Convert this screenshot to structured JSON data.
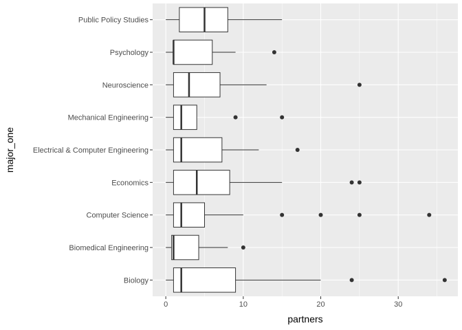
{
  "chart_data": {
    "type": "boxplot",
    "orientation": "horizontal",
    "xlabel": "partners",
    "ylabel": "major_one",
    "xlim": [
      -1.7,
      37.7
    ],
    "x_ticks": [
      0,
      10,
      20,
      30
    ],
    "x_tick_labels": [
      "0",
      "10",
      "20",
      "30"
    ],
    "grid": true,
    "colors": {
      "panel_background": "#ebebeb",
      "grid_major": "#ffffff",
      "box_fill": "#ffffff",
      "box_line": "#333333",
      "point": "#333333"
    },
    "categories": [
      "Biology",
      "Biomedical Engineering",
      "Computer Science",
      "Economics",
      "Electrical & Computer Engineering",
      "Mechanical Engineering",
      "Neuroscience",
      "Psychology",
      "Public Policy Studies"
    ],
    "boxes": [
      {
        "category": "Biology",
        "whisker_low": 0,
        "q1": 1,
        "median": 2,
        "q3": 9,
        "whisker_high": 20,
        "outliers": [
          24,
          36
        ]
      },
      {
        "category": "Biomedical Engineering",
        "whisker_low": 0,
        "q1": 0.75,
        "median": 1,
        "q3": 4.25,
        "whisker_high": 8,
        "outliers": [
          10
        ]
      },
      {
        "category": "Computer Science",
        "whisker_low": 0,
        "q1": 1,
        "median": 2,
        "q3": 5,
        "whisker_high": 10,
        "outliers": [
          15,
          20,
          25,
          34
        ]
      },
      {
        "category": "Economics",
        "whisker_low": 0,
        "q1": 1,
        "median": 4,
        "q3": 8.25,
        "whisker_high": 15,
        "outliers": [
          24,
          25
        ]
      },
      {
        "category": "Electrical & Computer Engineering",
        "whisker_low": 0,
        "q1": 1,
        "median": 2,
        "q3": 7.25,
        "whisker_high": 12,
        "outliers": [
          17
        ]
      },
      {
        "category": "Mechanical Engineering",
        "whisker_low": 0,
        "q1": 1,
        "median": 2,
        "q3": 4,
        "whisker_high": 4,
        "outliers": [
          9,
          15
        ]
      },
      {
        "category": "Neuroscience",
        "whisker_low": 0,
        "q1": 1,
        "median": 3,
        "q3": 7,
        "whisker_high": 13,
        "outliers": [
          25
        ]
      },
      {
        "category": "Psychology",
        "whisker_low": 0,
        "q1": 1,
        "median": 1,
        "q3": 6,
        "whisker_high": 9,
        "outliers": [
          14
        ]
      },
      {
        "category": "Public Policy Studies",
        "whisker_low": 0,
        "q1": 1.75,
        "median": 5,
        "q3": 8,
        "whisker_high": 15,
        "outliers": []
      }
    ]
  }
}
